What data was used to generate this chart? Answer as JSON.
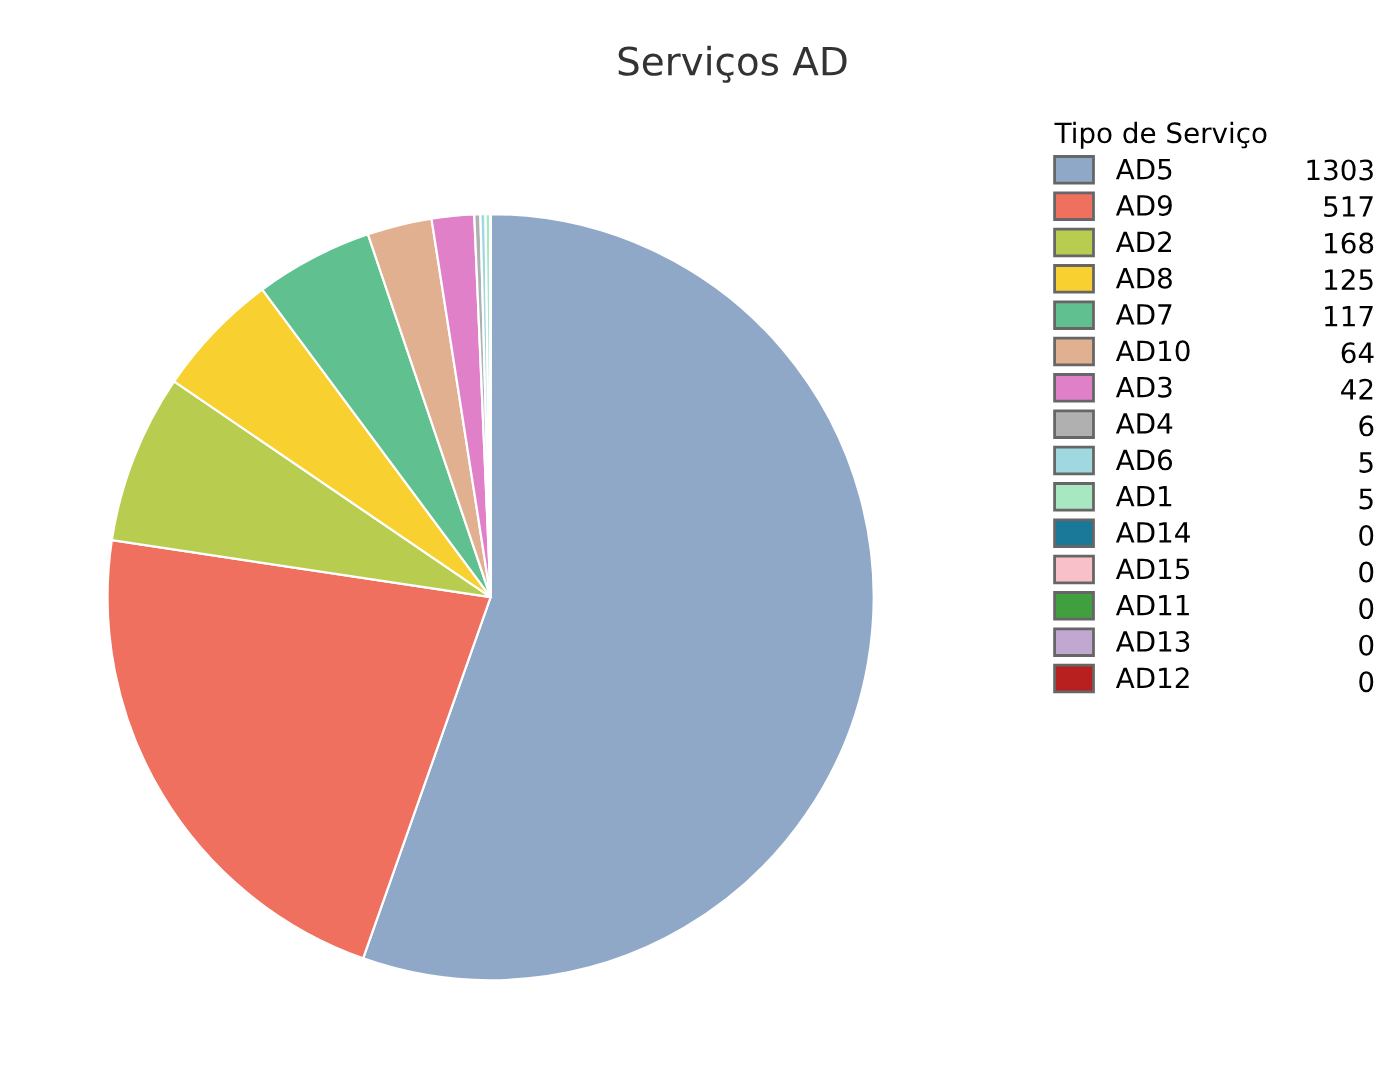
{
  "chart_data": {
    "type": "pie",
    "title": "Serviços AD",
    "legend_title": "Tipo de Serviço",
    "categories": [
      "AD5",
      "AD9",
      "AD2",
      "AD8",
      "AD7",
      "AD10",
      "AD3",
      "AD4",
      "AD6",
      "AD1",
      "AD14",
      "AD15",
      "AD11",
      "AD13",
      "AD12"
    ],
    "values": [
      1303,
      517,
      168,
      125,
      117,
      64,
      42,
      6,
      5,
      5,
      0,
      0,
      0,
      0,
      0
    ],
    "colors": [
      "#8fa8c8",
      "#f07060",
      "#b8cc50",
      "#f8d030",
      "#60c090",
      "#e0b090",
      "#e080c8",
      "#b0b0b0",
      "#a0d8e0",
      "#a8e8c0",
      "#1a7898",
      "#f8c0c8",
      "#40a040",
      "#c0a8d0",
      "#b82020"
    ],
    "value_labels": [
      "1303",
      "517",
      "168",
      "125",
      "117",
      "64",
      "42",
      "6",
      "5",
      "5",
      "0",
      "0",
      "0",
      "0",
      "0"
    ],
    "legend": "right"
  }
}
